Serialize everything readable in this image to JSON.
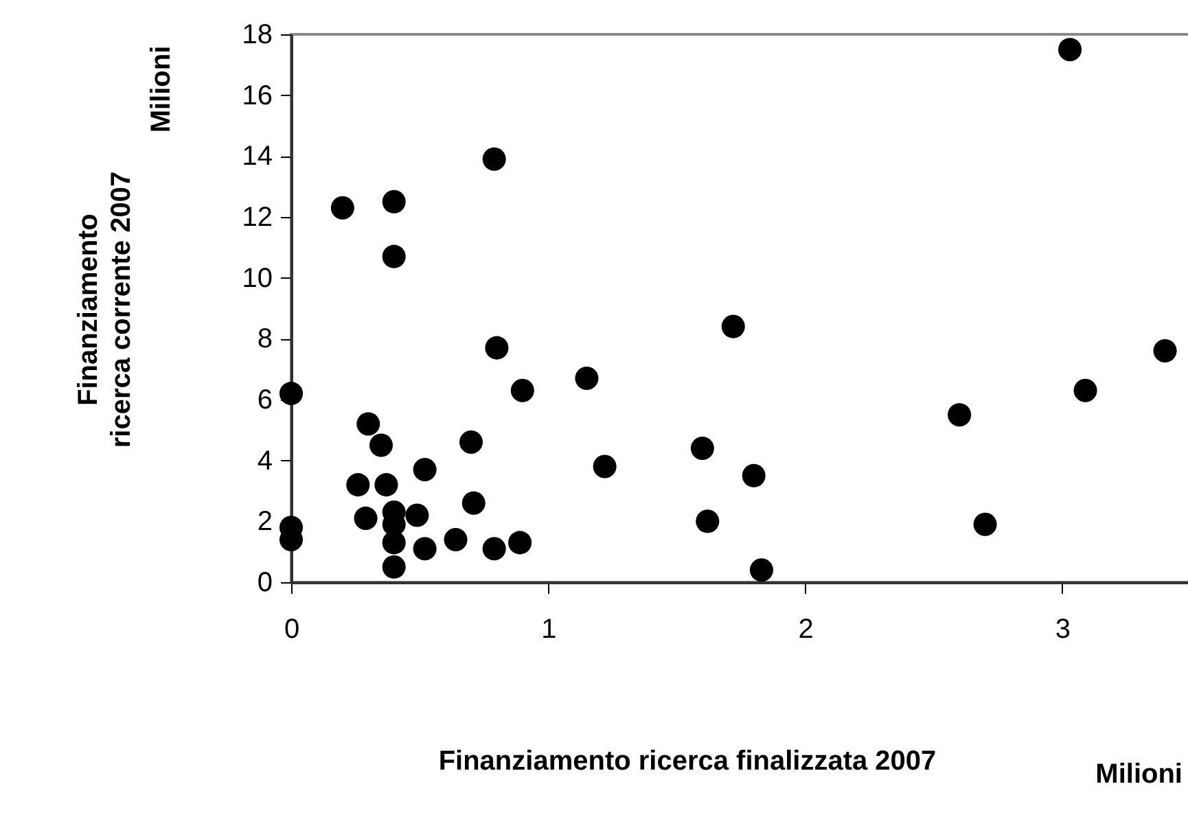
{
  "chart_data": {
    "type": "scatter",
    "xlabel": "Finanziamento ricerca finalizzata 2007",
    "ylabel": "Finanziamento\nricerca corrente 2007",
    "annotations": [
      "Milioni",
      "Milioni"
    ],
    "x": [
      0.79,
      0.2,
      0.4,
      0.4,
      0.8,
      0,
      0.9,
      1.15,
      0.3,
      0.35,
      0.7,
      0.52,
      1.22,
      1.6,
      1.62,
      0.26,
      0.37,
      0.29,
      0.4,
      0.49,
      0.4,
      0.4,
      0.71,
      0,
      0,
      0.52,
      0.64,
      0.79,
      0.89,
      0.4,
      3.03,
      1.72,
      3.4,
      3.09,
      2.6,
      1.8,
      2.7,
      1.83
    ],
    "values": [
      13.9,
      12.3,
      12.5,
      10.7,
      7.7,
      6.2,
      6.3,
      6.7,
      5.2,
      4.5,
      4.6,
      3.7,
      3.8,
      4.4,
      2.0,
      3.2,
      3.2,
      2.1,
      2.3,
      2.2,
      1.9,
      1.3,
      2.6,
      1.8,
      1.4,
      1.1,
      1.4,
      1.1,
      1.3,
      0.5,
      17.5,
      8.4,
      7.6,
      6.3,
      5.5,
      3.5,
      1.9,
      0.4
    ],
    "color": "#000000",
    "marker": "circle",
    "grid": false,
    "xlim": [
      0,
      3.5
    ],
    "xticks": [
      0,
      1,
      2,
      3
    ],
    "ylim": [
      0,
      18
    ],
    "yticks": [
      0,
      2,
      4,
      6,
      8,
      10,
      12,
      14,
      16,
      18
    ]
  }
}
